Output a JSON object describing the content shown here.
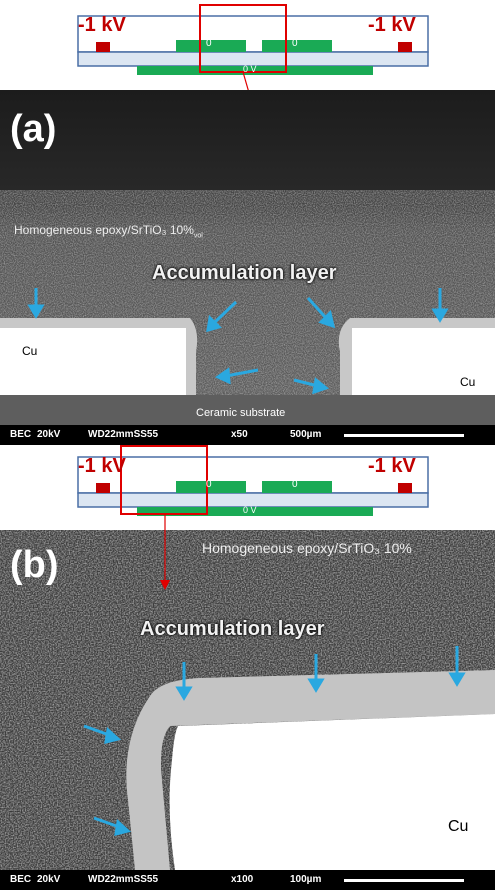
{
  "top_diagram": {
    "left_voltage": "-1 kV",
    "right_voltage": "-1 kV",
    "electrode_labels": [
      "0",
      "0"
    ],
    "ground_label": "0 V"
  },
  "panel_a": {
    "label": "(a)",
    "material_text": "Homogeneous epoxy/SrTiO₃ 10%",
    "material_subscript": "vol",
    "accumulation_text": "Accumulation layer",
    "cu_left": "Cu",
    "cu_right": "Cu",
    "substrate": "Ceramic substrate",
    "info": {
      "mode": "BEC",
      "kv": "20kV",
      "wd": "WD22mmSS55",
      "mag": "x50",
      "scale": "500µm"
    }
  },
  "bottom_diagram": {
    "left_voltage": "-1 kV",
    "right_voltage": "-1 kV",
    "electrode_labels": [
      "0",
      "0"
    ],
    "ground_label": "0 V"
  },
  "panel_b": {
    "label": "(b)",
    "material_text": "Homogeneous epoxy/SrTiO₃ 10%",
    "accumulation_text": "Accumulation layer",
    "cu": "Cu",
    "info": {
      "mode": "BEC",
      "kv": "20kV",
      "wd": "WD22mmSS55",
      "mag": "x100",
      "scale": "100µm"
    }
  },
  "colors": {
    "electrode_red": "#c00000",
    "electrode_green": "#1aaa55",
    "substrate_blue": "#dce6f2",
    "arrow_blue": "#2aa8e0",
    "frame_red": "#e00000"
  }
}
